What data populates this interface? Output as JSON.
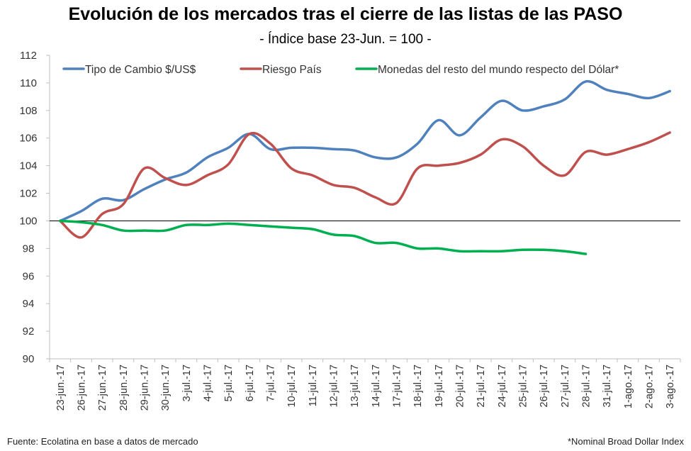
{
  "chart_data": {
    "type": "line",
    "title": "Evolución de los mercados tras el cierre de las listas de las PASO",
    "subtitle": "- Índice base 23-Jun. = 100 -",
    "categories": [
      "23-jun.-17",
      "26-jun.-17",
      "27-jun.-17",
      "28-jun.-17",
      "29-jun.-17",
      "30-jun.-17",
      "3-jul.-17",
      "4-jul.-17",
      "5-jul.-17",
      "6-jul.-17",
      "7-jul.-17",
      "10-jul.-17",
      "11-jul.-17",
      "12-jul.-17",
      "13-jul.-17",
      "14-jul.-17",
      "17-jul.-17",
      "18-jul.-17",
      "19-jul.-17",
      "20-jul.-17",
      "21-jul.-17",
      "24-jul.-17",
      "25-jul.-17",
      "26-jul.-17",
      "27-jul.-17",
      "28-jul.-17",
      "31-jul.-17",
      "1-ago.-17",
      "2-ago.-17",
      "3-ago.-17"
    ],
    "ylim": [
      90,
      112
    ],
    "yticks": [
      90,
      92,
      94,
      96,
      98,
      100,
      102,
      104,
      106,
      108,
      110,
      112
    ],
    "baseline": 100,
    "grid": false,
    "legend_position": "top",
    "series": [
      {
        "name": "Tipo de Cambio $/US$",
        "color": "#4f81bd",
        "values": [
          100,
          100.7,
          101.6,
          101.5,
          102.3,
          103,
          103.5,
          104.6,
          105.3,
          106.3,
          105.2,
          105.3,
          105.3,
          105.2,
          105.1,
          104.6,
          104.6,
          105.6,
          107.3,
          106.2,
          107.5,
          108.7,
          108,
          108.3,
          108.8,
          110.1,
          109.5,
          109.2,
          108.9,
          109.4
        ]
      },
      {
        "name": "Riesgo País",
        "color": "#c0504d",
        "values": [
          100,
          98.8,
          100.5,
          101.2,
          103.8,
          103.1,
          102.6,
          103.3,
          104.1,
          106.3,
          105.6,
          103.8,
          103.3,
          102.6,
          102.4,
          101.7,
          101.3,
          103.8,
          104,
          104.2,
          104.8,
          105.9,
          105.4,
          104,
          103.3,
          105,
          104.8,
          105.2,
          105.7,
          106.4
        ]
      },
      {
        "name": "Monedas del resto del mundo respecto del Dólar*",
        "color": "#00b050",
        "values": [
          100,
          99.9,
          99.7,
          99.3,
          99.3,
          99.3,
          99.7,
          99.7,
          99.8,
          99.7,
          99.6,
          99.5,
          99.4,
          99,
          98.9,
          98.4,
          98.4,
          98,
          98,
          97.8,
          97.8,
          97.8,
          97.9,
          97.9,
          97.8,
          97.6,
          null,
          null,
          null,
          null
        ]
      }
    ]
  },
  "footer": {
    "source": "Fuente: Ecolatina en base a datos de mercado",
    "note": "*Nominal Broad Dollar Index"
  }
}
